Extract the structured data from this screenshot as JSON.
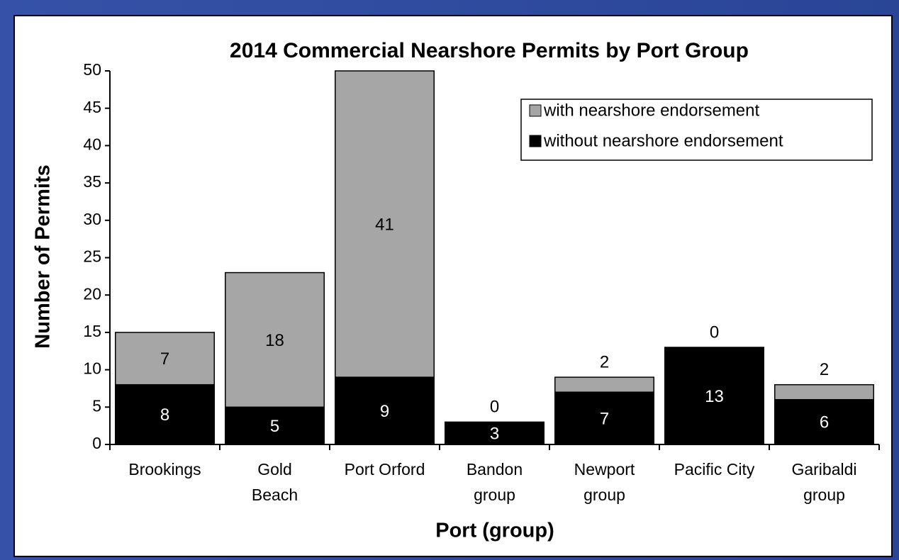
{
  "chart_data": {
    "type": "stacked_bar",
    "title": "2014 Commercial Nearshore Permits by Port Group",
    "x_label": "Port (group)",
    "y_label": "Number of Permits",
    "categories": [
      [
        "Brookings"
      ],
      [
        "Gold",
        "Beach"
      ],
      [
        "Port Orford"
      ],
      [
        "Bandon",
        "group"
      ],
      [
        "Newport",
        "group"
      ],
      [
        "Pacific City"
      ],
      [
        "Garibaldi",
        "group"
      ]
    ],
    "series": [
      {
        "name": "without nearshore endorsement",
        "color": "#000000",
        "label_color": "#ffffff",
        "values": [
          8,
          5,
          9,
          3,
          7,
          13,
          6
        ]
      },
      {
        "name": "with nearshore endorsement",
        "color": "#a6a6a6",
        "label_color": "#000000",
        "values": [
          7,
          18,
          41,
          0,
          2,
          0,
          2
        ]
      }
    ],
    "ylim": [
      0,
      50
    ],
    "yticks": [
      0,
      5,
      10,
      15,
      20,
      25,
      30,
      35,
      40,
      45,
      50
    ],
    "legend": "top-right"
  }
}
